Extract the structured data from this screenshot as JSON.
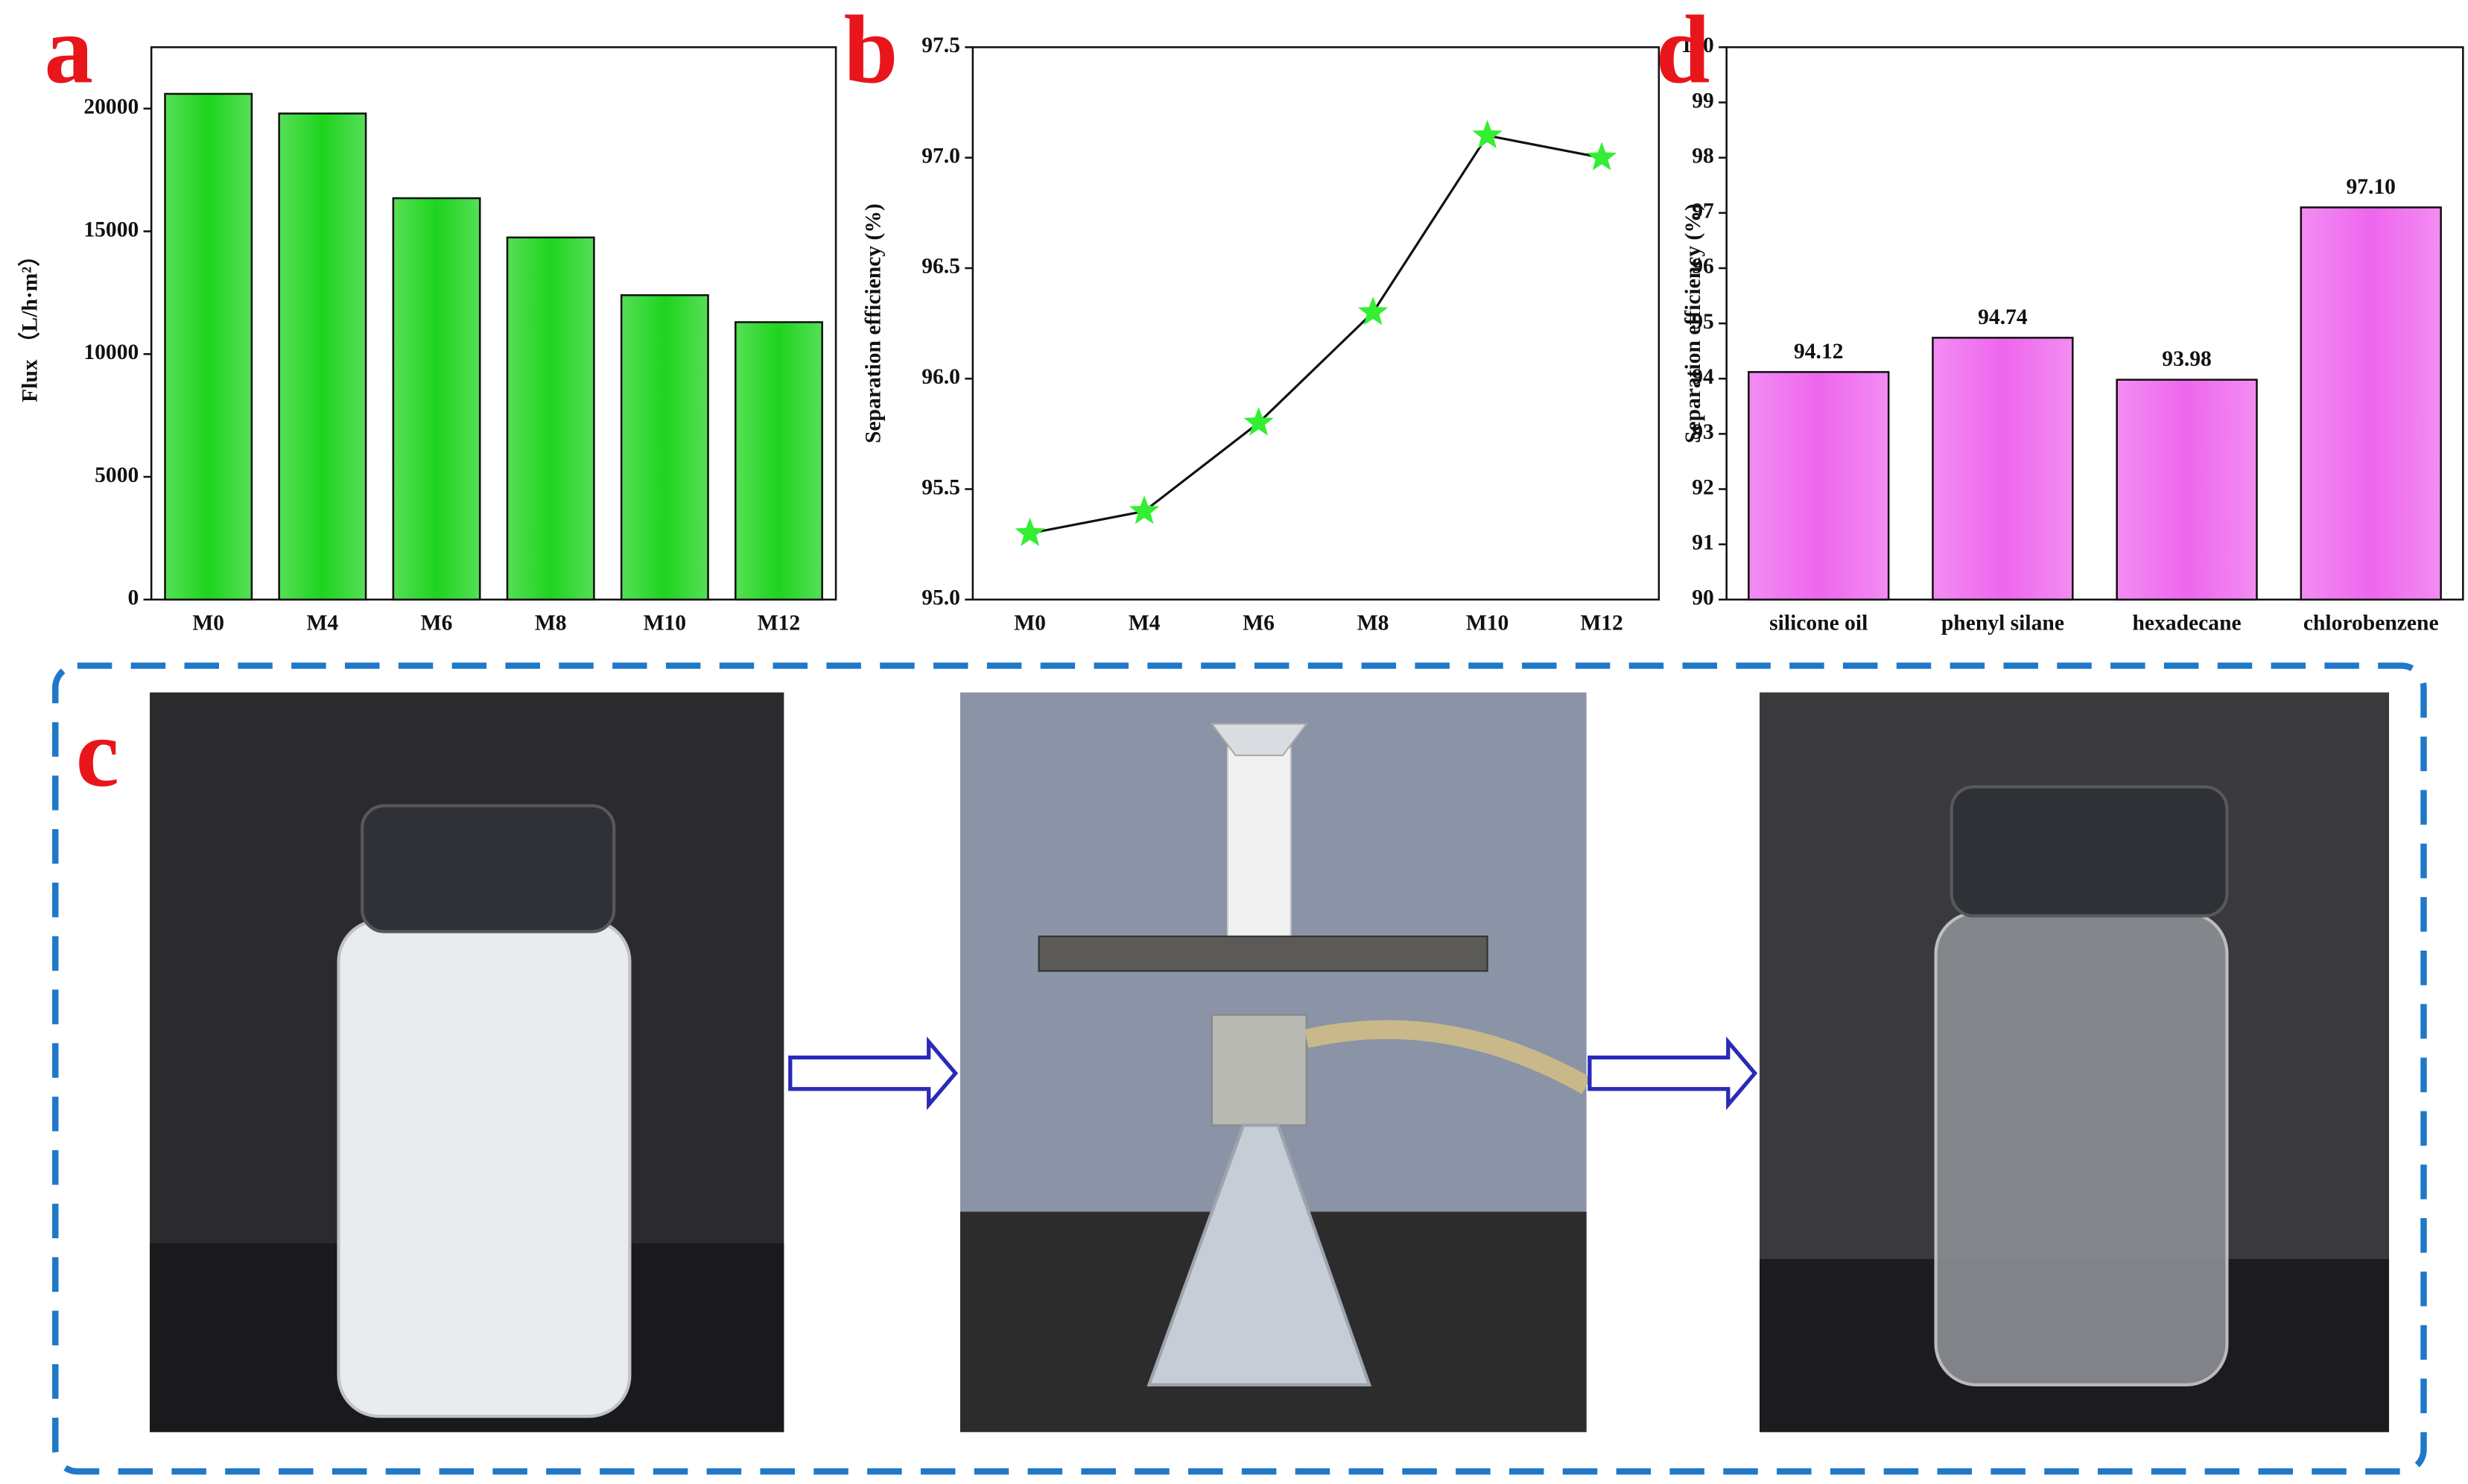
{
  "chart_data": [
    {
      "type": "bar",
      "label": "a",
      "ylabel": "Flux （L/h·m²）",
      "categories": [
        "M0",
        "M4",
        "M6",
        "M8",
        "M10",
        "M12"
      ],
      "values": [
        20600,
        19800,
        16350,
        14750,
        12400,
        11300
      ],
      "color": "#1ed41e",
      "ylim": [
        0,
        22500
      ],
      "yticks": [
        0,
        5000,
        10000,
        15000,
        20000
      ]
    },
    {
      "type": "line",
      "label": "b",
      "ylabel": "Separation efficiency (%)",
      "categories": [
        "M0",
        "M4",
        "M6",
        "M8",
        "M10",
        "M12"
      ],
      "values": [
        95.3,
        95.4,
        95.8,
        96.3,
        97.1,
        97.0
      ],
      "color": "#33ee33",
      "line_color": "#111111",
      "ylim": [
        95,
        97.5
      ],
      "yticks": [
        {
          "value": 95,
          "label": "95.0"
        },
        95.5,
        {
          "value": 96,
          "label": "96.0"
        },
        96.5,
        {
          "value": 97,
          "label": "97.0"
        },
        97.5
      ]
    },
    {
      "type": "bar",
      "label": "d",
      "ylabel": "Separation efficiency (%)",
      "categories": [
        "silicone oil",
        "phenyl silane",
        "hexadecane",
        "chlorobenzene"
      ],
      "values": [
        94.12,
        94.74,
        93.98,
        97.1
      ],
      "value_labels": [
        "94.12",
        "94.74",
        "93.98",
        "97.10"
      ],
      "color": "#ee66ee",
      "ylim": [
        90,
        100
      ],
      "yticks": [
        90,
        91,
        92,
        93,
        94,
        95,
        96,
        97,
        98,
        99,
        100
      ]
    }
  ],
  "panel_c": {
    "label": "c"
  }
}
